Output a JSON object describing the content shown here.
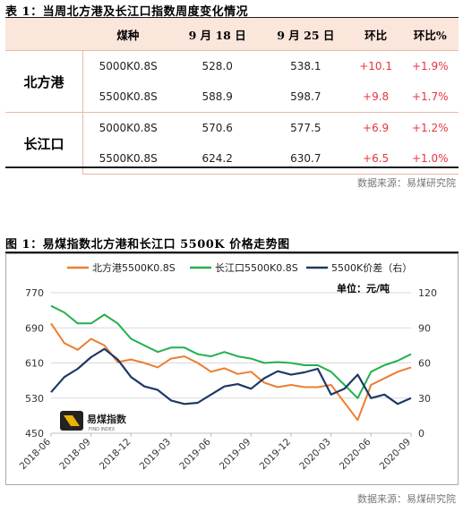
{
  "table_title": "表 1：当周北方港及长江口指数周度变化情况",
  "table": {
    "headers": [
      "",
      "煤种",
      "9 月 18 日",
      "9 月 25 日",
      "环比",
      "环比%"
    ],
    "groups": [
      {
        "port": "北方港",
        "rows": [
          {
            "grade": "5000K0.8S",
            "sep18": "528.0",
            "sep25": "538.1",
            "change": "+10.1",
            "pct": "+1.9%"
          },
          {
            "grade": "5500K0.8S",
            "sep18": "588.9",
            "sep25": "598.7",
            "change": "+9.8",
            "pct": "+1.7%"
          }
        ]
      },
      {
        "port": "长江口",
        "rows": [
          {
            "grade": "5000K0.8S",
            "sep18": "570.6",
            "sep25": "577.5",
            "change": "+6.9",
            "pct": "+1.2%"
          },
          {
            "grade": "5500K0.8S",
            "sep18": "624.2",
            "sep25": "630.7",
            "change": "+6.5",
            "pct": "+1.0%"
          }
        ]
      }
    ]
  },
  "source_1": "数据来源：易煤研究院",
  "chart_title": "图 1：易煤指数北方港和长江口 5500K 价格走势图",
  "logo_text": "易煤指数",
  "logo_subtext": "FIND INDEX",
  "source_2": "数据来源：易煤研究院",
  "colors": {
    "north": "#ed7d31",
    "yangtze": "#22b14c",
    "spread": "#1f3864",
    "red": "#e8343c",
    "header_bg": "#fbe6dc"
  },
  "chart_data": {
    "type": "line",
    "unit_label": "单位：元/吨",
    "y_left": {
      "min": 450,
      "max": 770,
      "ticks": [
        450,
        530,
        610,
        690,
        770
      ]
    },
    "y_right": {
      "min": 0,
      "max": 120,
      "ticks": [
        0,
        30,
        60,
        90,
        120
      ]
    },
    "x_ticks": [
      "2018-06",
      "2018-09",
      "2018-12",
      "2019-03",
      "2019-06",
      "2019-09",
      "2019-12",
      "2020-03",
      "2020-06",
      "2020-09"
    ],
    "x": [
      "2018-06",
      "2018-07",
      "2018-08",
      "2018-09",
      "2018-10",
      "2018-11",
      "2018-12",
      "2019-01",
      "2019-02",
      "2019-03",
      "2019-04",
      "2019-05",
      "2019-06",
      "2019-07",
      "2019-08",
      "2019-09",
      "2019-10",
      "2019-11",
      "2019-12",
      "2020-01",
      "2020-02",
      "2020-03",
      "2020-04",
      "2020-05",
      "2020-06",
      "2020-07",
      "2020-08",
      "2020-09"
    ],
    "series": [
      {
        "name": "北方港5500K0.8S",
        "axis": "left",
        "values": [
          700,
          655,
          640,
          665,
          650,
          612,
          618,
          610,
          600,
          620,
          625,
          610,
          590,
          598,
          585,
          590,
          565,
          555,
          560,
          555,
          555,
          560,
          520,
          480,
          560,
          575,
          590,
          600
        ]
      },
      {
        "name": "长江口5500K0.8S",
        "axis": "left",
        "values": [
          740,
          725,
          700,
          700,
          720,
          700,
          665,
          650,
          635,
          645,
          645,
          630,
          625,
          635,
          625,
          620,
          610,
          612,
          610,
          605,
          605,
          590,
          560,
          530,
          590,
          605,
          615,
          630
        ]
      },
      {
        "name": "5500K价差（右）",
        "axis": "right",
        "values": [
          35,
          48,
          55,
          65,
          72,
          63,
          48,
          40,
          37,
          28,
          25,
          26,
          33,
          40,
          42,
          38,
          47,
          53,
          50,
          52,
          55,
          33,
          38,
          50,
          30,
          33,
          25,
          30
        ]
      }
    ]
  }
}
